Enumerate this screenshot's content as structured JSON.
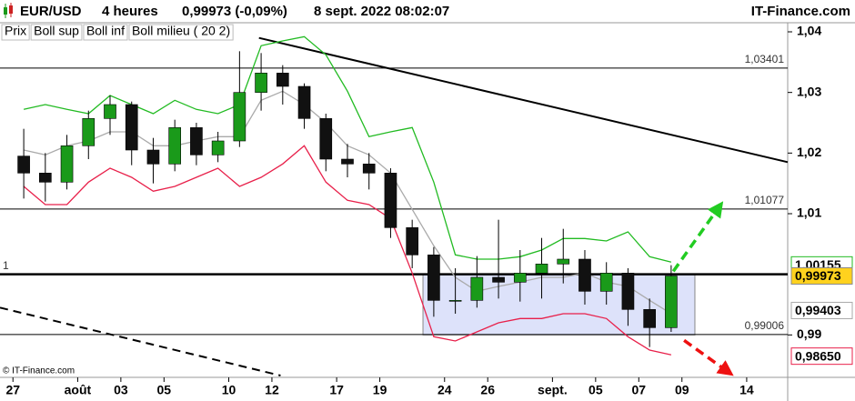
{
  "chart_data": {
    "type": "candlestick",
    "header": {
      "symbol": "EUR/USD",
      "period": "4 heures",
      "quote": "0,99973 (-0,09%)",
      "date": "8 sept. 2022 08:02:07",
      "site": "IT-Finance.com"
    },
    "legend": [
      "Prix",
      "Boll sup",
      "Boll inf",
      "Boll milieu ( 20 2)"
    ],
    "watermark": "© IT-Finance.com",
    "xlim": [
      -0.6,
      35.9
    ],
    "xticks": [
      {
        "value": 0,
        "label": "27"
      },
      {
        "value": 3,
        "label": "août"
      },
      {
        "value": 5,
        "label": "03"
      },
      {
        "value": 7,
        "label": "05"
      },
      {
        "value": 10,
        "label": "10"
      },
      {
        "value": 12,
        "label": "12"
      },
      {
        "value": 15,
        "label": "17"
      },
      {
        "value": 17,
        "label": "19"
      },
      {
        "value": 20,
        "label": "24"
      },
      {
        "value": 22,
        "label": "26"
      },
      {
        "value": 25,
        "label": "sept."
      },
      {
        "value": 27,
        "label": "05"
      },
      {
        "value": 29,
        "label": "07"
      },
      {
        "value": 31,
        "label": "09"
      },
      {
        "value": 34,
        "label": "14"
      }
    ],
    "ylim": [
      0.983,
      1.0415
    ],
    "yticks": [
      {
        "value": 1.04,
        "label": "1,04"
      },
      {
        "value": 1.03,
        "label": "1,03"
      },
      {
        "value": 1.02,
        "label": "1,02"
      },
      {
        "value": 1.01,
        "label": "1,01"
      },
      {
        "value": 0.99,
        "label": "0,99"
      }
    ],
    "x": [
      0.5,
      1.5,
      2.5,
      3.5,
      4.5,
      5.5,
      6.5,
      7.5,
      8.5,
      9.5,
      10.5,
      11.5,
      12.5,
      13.5,
      14.5,
      15.5,
      16.5,
      17.5,
      18.5,
      19.5,
      20.5,
      21.5,
      22.5,
      23.5,
      24.5,
      25.5,
      26.5,
      27.5,
      28.5,
      29.5,
      30.5
    ],
    "candles": {
      "up_color": "#1a9a1a",
      "down_color": "#111111",
      "open": [
        1.0195,
        1.0167,
        1.0152,
        1.0212,
        1.0257,
        1.028,
        1.0205,
        1.0182,
        1.0242,
        1.0197,
        1.022,
        1.03,
        1.0332,
        1.031,
        1.0257,
        1.019,
        1.0182,
        1.0167,
        1.0077,
        1.0032,
        0.9957,
        0.9957,
        0.9995,
        0.9987,
        1.0002,
        1.0017,
        1.0025,
        0.9972,
        1.0002,
        0.9942,
        0.9912
      ],
      "high": [
        1.024,
        1.02,
        1.023,
        1.027,
        1.0295,
        1.0285,
        1.0225,
        1.0255,
        1.025,
        1.0235,
        1.0368,
        1.0365,
        1.0345,
        1.0315,
        1.0265,
        1.0215,
        1.02,
        1.0175,
        1.009,
        1.0045,
        1.001,
        1.003,
        1.009,
        1.004,
        1.006,
        1.0075,
        1.004,
        1.002,
        1.001,
        0.996,
        1.0015
      ],
      "low": [
        1.0125,
        1.012,
        1.014,
        1.019,
        1.023,
        1.018,
        1.015,
        1.017,
        1.018,
        1.0185,
        1.021,
        1.027,
        1.028,
        1.024,
        1.017,
        1.016,
        1.014,
        1.006,
        1.001,
        0.993,
        0.9935,
        0.9945,
        0.996,
        0.9955,
        0.996,
        0.9985,
        0.995,
        0.995,
        0.9915,
        0.988,
        0.9905
      ],
      "close": [
        1.0167,
        1.0152,
        1.0212,
        1.0257,
        1.028,
        1.0205,
        1.0182,
        1.0242,
        1.0197,
        1.022,
        1.03,
        1.0332,
        1.031,
        1.0257,
        1.019,
        1.0182,
        1.0167,
        1.0077,
        1.0032,
        0.9957,
        0.9957,
        0.9995,
        0.9987,
        1.0002,
        1.0017,
        1.0025,
        0.9972,
        1.0002,
        0.9942,
        0.9912,
        0.99973
      ],
      "last_value": 0.99973,
      "last_label": "0,99973",
      "last_bg": "#ffd21e"
    },
    "series": [
      {
        "name": "Boll sup",
        "color": "#22bb22",
        "last_value": 1.00155,
        "last_label": "1,00155",
        "values": [
          1.0272,
          1.028,
          1.0272,
          1.0265,
          1.0295,
          1.028,
          1.0265,
          1.0287,
          1.0272,
          1.0265,
          1.028,
          1.0377,
          1.0385,
          1.0392,
          1.0362,
          1.0302,
          1.0227,
          1.0235,
          1.0242,
          1.0152,
          1.0032,
          1.0025,
          1.0025,
          1.0029,
          1.004,
          1.0059,
          1.0059,
          1.0055,
          1.007,
          1.0029,
          1.002
        ]
      },
      {
        "name": "Boll inf",
        "color": "#e8204a",
        "last_value": 0.9865,
        "last_label": "0,98650",
        "values": [
          1.0145,
          1.0115,
          1.0115,
          1.0152,
          1.0175,
          1.016,
          1.0137,
          1.0145,
          1.016,
          1.0175,
          1.0145,
          1.016,
          1.0182,
          1.0212,
          1.0152,
          1.0122,
          1.0115,
          1.0092,
          1.0002,
          0.9897,
          0.989,
          0.9905,
          0.992,
          0.9927,
          0.9927,
          0.9935,
          0.9935,
          0.9927,
          0.9897,
          0.9875,
          0.9867
        ]
      },
      {
        "name": "Boll milieu ( 20 2)",
        "color": "#aaaaaa",
        "last_value": 0.99403,
        "last_label": "0,99403",
        "values": [
          1.0205,
          1.0197,
          1.0212,
          1.022,
          1.0235,
          1.0235,
          1.0212,
          1.0212,
          1.022,
          1.0227,
          1.0227,
          1.0287,
          1.0302,
          1.028,
          1.025,
          1.0212,
          1.0197,
          1.0167,
          1.0107,
          1.0047,
          0.9995,
          0.9972,
          0.998,
          0.9987,
          0.9995,
          0.9995,
          1.0002,
          0.9987,
          0.998,
          0.9957,
          0.9935
        ]
      }
    ],
    "levels": [
      {
        "value": 1.03401,
        "label": "1,03401",
        "side": "right"
      },
      {
        "value": 1.01077,
        "label": "1,01077",
        "side": "right"
      },
      {
        "value": 0.99006,
        "label": "0,99006",
        "side": "right"
      },
      {
        "value": 1,
        "label": "1",
        "side": "left",
        "bold": true
      }
    ],
    "trend_lines": [
      {
        "x": [
          11.4,
          35.9
        ],
        "y": [
          1.039,
          1.0185
        ],
        "color": "#000000",
        "dashed": false
      },
      {
        "x": [
          -0.6,
          12.4
        ],
        "y": [
          0.9945,
          0.9833
        ],
        "color": "#000000",
        "dashed": true
      }
    ],
    "arrows": [
      {
        "x": [
          30.6,
          32.7
        ],
        "y": [
          1.0005,
          1.011
        ],
        "color": "#22cc22"
      },
      {
        "x": [
          31.1,
          33.1
        ],
        "y": [
          0.9891,
          0.984
        ],
        "color": "#ee1111"
      }
    ],
    "range_box": {
      "x": [
        19,
        31.6
      ],
      "y": [
        0.99,
        1.0
      ],
      "color": "#dde2fa"
    }
  }
}
